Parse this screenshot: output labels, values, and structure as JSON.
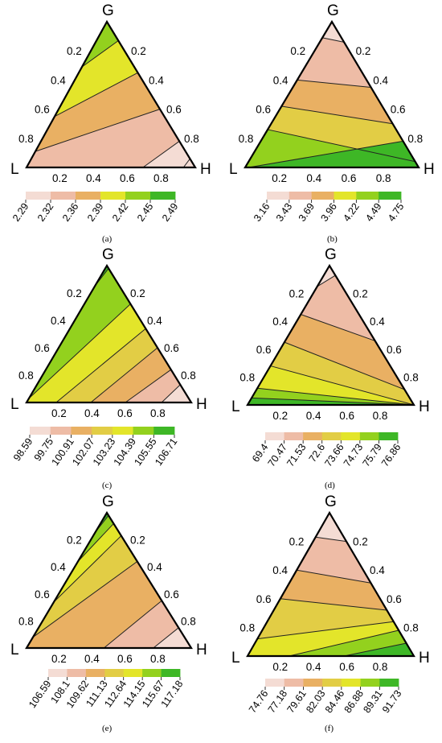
{
  "palette": [
    "#f4dcd4",
    "#eebca6",
    "#e9b063",
    "#e2cd45",
    "#e3e52a",
    "#93d11e",
    "#3eb726"
  ],
  "chart_data": [
    {
      "type": "ternary-contour",
      "caption": "(a)",
      "vertices": {
        "top": "G",
        "left": "L",
        "right": "H"
      },
      "ticks": [
        "0.2",
        "0.4",
        "0.6",
        "0.8"
      ],
      "legend_values": [
        "2.29",
        "2.32",
        "2.36",
        "2.39",
        "2.42",
        "2.45",
        "2.49"
      ],
      "band_colors": [
        "#93d11e",
        "#e3e52a",
        "#e9b063",
        "#eebca6",
        "#f4dcd4"
      ],
      "boundaries": [
        {
          "side": "L",
          "p": 0.69,
          "q": 0.87
        },
        {
          "side": "L",
          "p": 0.35,
          "q": 0.65
        },
        {
          "side": "L",
          "p": 0.11,
          "q": 0.4
        },
        {
          "side": "B",
          "p": 0.69,
          "q": 0.18
        },
        {
          "side": "B",
          "p": 0.93,
          "q": 0.06
        }
      ]
    },
    {
      "type": "ternary-contour",
      "caption": "(b)",
      "vertices": {
        "top": "G",
        "left": "L",
        "right": "H"
      },
      "ticks": [
        "0.2",
        "0.4",
        "0.6",
        "0.8"
      ],
      "legend_values": [
        "3.16",
        "3.43",
        "3.69",
        "3.96",
        "4.22",
        "4.49",
        "4.75"
      ],
      "band_colors": [
        "#f4dcd4",
        "#eebca6",
        "#e9b063",
        "#e2cd45",
        "#93d11e",
        "#3eb726"
      ],
      "boundaries": [
        {
          "side": "L",
          "p": 0.89,
          "q": 0.86
        },
        {
          "side": "L",
          "p": 0.6,
          "q": 0.55
        },
        {
          "side": "L",
          "p": 0.42,
          "q": 0.3
        },
        {
          "side": "L",
          "p": 0.26,
          "q": 0.04
        },
        {
          "side": "B",
          "p": 0.02,
          "q": 0.18
        }
      ]
    },
    {
      "type": "ternary-contour",
      "caption": "(c)",
      "vertices": {
        "top": "G",
        "left": "L",
        "right": "H"
      },
      "ticks": [
        "0.2",
        "0.4",
        "0.6",
        "0.8"
      ],
      "legend_values": [
        "98.59",
        "99.75",
        "100.91",
        "102.07",
        "103.23",
        "104.39",
        "105.55",
        "106.71"
      ],
      "band_colors": [
        "#3eb726",
        "#93d11e",
        "#e3e52a",
        "#e2cd45",
        "#e9b063",
        "#eebca6",
        "#f4dcd4"
      ],
      "boundaries": [
        {
          "side": "L",
          "p": 0.85,
          "q": 0.98
        },
        {
          "side": "L",
          "p": 0.03,
          "q": 0.72
        },
        {
          "side": "B",
          "p": 0.18,
          "q": 0.54
        },
        {
          "side": "B",
          "p": 0.39,
          "q": 0.4
        },
        {
          "side": "B",
          "p": 0.6,
          "q": 0.24
        },
        {
          "side": "B",
          "p": 0.82,
          "q": 0.13
        }
      ]
    },
    {
      "type": "ternary-contour",
      "caption": "(d)",
      "vertices": {
        "top": "G",
        "left": "L",
        "right": "H"
      },
      "ticks": [
        "0.2",
        "0.4",
        "0.6",
        "0.8"
      ],
      "legend_values": [
        "69.4",
        "70.47",
        "71.53",
        "72.6",
        "73.66",
        "74.73",
        "75.79",
        "76.86"
      ],
      "band_colors": [
        "#f4dcd4",
        "#eebca6",
        "#e9b063",
        "#e2cd45",
        "#e3e52a",
        "#93d11e",
        "#3eb726"
      ],
      "boundaries": [
        {
          "side": "L",
          "p": 0.85,
          "q": 0.93
        },
        {
          "side": "L",
          "p": 0.65,
          "q": 0.46
        },
        {
          "side": "L",
          "p": 0.45,
          "q": 0.11
        },
        {
          "side": "L",
          "p": 0.28,
          "q": 0.0
        },
        {
          "side": "L",
          "p": 0.12,
          "q": 0.0
        },
        {
          "side": "L",
          "p": 0.05,
          "q": 0.0
        }
      ]
    },
    {
      "type": "ternary-contour",
      "caption": "(e)",
      "vertices": {
        "top": "G",
        "left": "L",
        "right": "H"
      },
      "ticks": [
        "0.2",
        "0.4",
        "0.6",
        "0.8"
      ],
      "legend_values": [
        "106.59",
        "108.1",
        "109.62",
        "111.13",
        "112.64",
        "114.15",
        "115.67",
        "117.18"
      ],
      "band_colors": [
        "#3eb726",
        "#93d11e",
        "#e3e52a",
        "#e2cd45",
        "#e9b063",
        "#eebca6",
        "#f4dcd4"
      ],
      "boundaries": [
        {
          "side": "L",
          "p": 0.86,
          "q": 0.98
        },
        {
          "side": "L",
          "p": 0.64,
          "q": 0.92
        },
        {
          "side": "L",
          "p": 0.34,
          "q": 0.83
        },
        {
          "side": "L",
          "p": 0.08,
          "q": 0.64
        },
        {
          "side": "B",
          "p": 0.47,
          "q": 0.35
        },
        {
          "side": "B",
          "p": 0.77,
          "q": 0.15
        }
      ]
    },
    {
      "type": "ternary-contour",
      "caption": "(f)",
      "vertices": {
        "top": "G",
        "left": "L",
        "right": "H"
      },
      "ticks": [
        "0.2",
        "0.4",
        "0.6",
        "0.8"
      ],
      "legend_values": [
        "74.76",
        "77.18",
        "79.61",
        "82.03",
        "84.46",
        "86.88",
        "89.31",
        "91.73"
      ],
      "band_colors": [
        "#f4dcd4",
        "#eebca6",
        "#e9b063",
        "#e2cd45",
        "#e3e52a",
        "#93d11e",
        "#3eb726"
      ],
      "boundaries": [
        {
          "side": "L",
          "p": 0.83,
          "q": 0.8
        },
        {
          "side": "L",
          "p": 0.6,
          "q": 0.51
        },
        {
          "side": "L",
          "p": 0.4,
          "q": 0.32
        },
        {
          "side": "L",
          "p": 0.12,
          "q": 0.24
        },
        {
          "side": "B",
          "p": 0.25,
          "q": 0.18
        },
        {
          "side": "B",
          "p": 0.58,
          "q": 0.09
        }
      ]
    }
  ]
}
